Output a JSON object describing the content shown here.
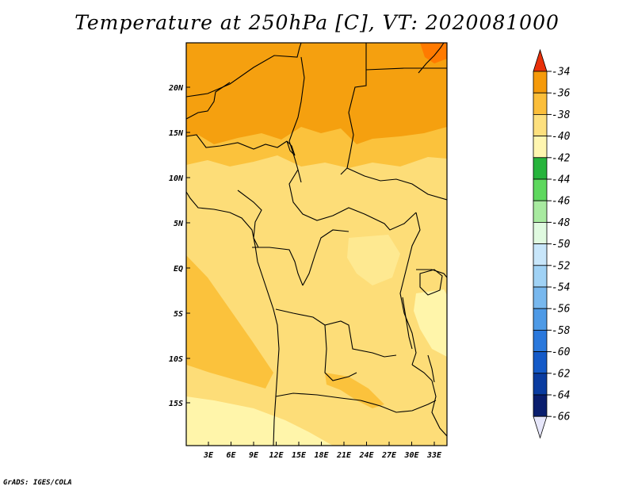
{
  "title": "Temperature at 250hPa [C], VT: 2020081000",
  "credit": "GrADS: IGES/COLA",
  "map": {
    "lat_ticks": [
      "20N",
      "15N",
      "10N",
      "5N",
      "EQ",
      "5S",
      "10S",
      "15S"
    ],
    "lon_ticks": [
      "3E",
      "6E",
      "9E",
      "12E",
      "15E",
      "18E",
      "21E",
      "24E",
      "27E",
      "30E",
      "33E"
    ],
    "shading": {
      "c36_38": "#f5a00f",
      "c38_40": "#fbc23c",
      "c40_42": "#fddd78",
      "c42_44": "#fff5aa",
      "c34_36": "#ff7a00"
    }
  },
  "colorbar": {
    "labels": [
      "-34",
      "-36",
      "-38",
      "-40",
      "-42",
      "-44",
      "-46",
      "-48",
      "-50",
      "-52",
      "-54",
      "-56",
      "-58",
      "-60",
      "-62",
      "-64",
      "-66"
    ],
    "colors": [
      "#f45000",
      "#f59a0a",
      "#fbbe3a",
      "#fde07e",
      "#fff6b0",
      "#27b43c",
      "#5ed85e",
      "#a8eaa0",
      "#e0fae0",
      "#c8e6fa",
      "#a0d2f5",
      "#78b8ee",
      "#4e9ae6",
      "#2a78dc",
      "#145ac8",
      "#0a3ca0",
      "#0a1e6e"
    ],
    "top_arrow_color": "#e8300a",
    "bottom_arrow_color": "#e6e6fa"
  }
}
